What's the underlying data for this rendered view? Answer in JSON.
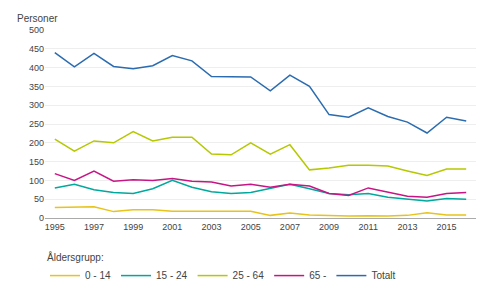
{
  "chart_data": {
    "type": "line",
    "y_label": "Personer",
    "legend_title": "Åldersgrupp:",
    "x": [
      1995,
      1996,
      1997,
      1998,
      1999,
      2000,
      2001,
      2002,
      2003,
      2004,
      2005,
      2006,
      2007,
      2008,
      2009,
      2010,
      2011,
      2012,
      2013,
      2014,
      2015,
      2016
    ],
    "series": [
      {
        "name": "0 - 14",
        "color": "#e8c319",
        "values": [
          28,
          30,
          30,
          17,
          22,
          22,
          18,
          18,
          18,
          20,
          18,
          7,
          13,
          8,
          6,
          5,
          6,
          5,
          7,
          14,
          8,
          8
        ]
      },
      {
        "name": "15 - 24",
        "color": "#00a89d",
        "values": [
          80,
          90,
          75,
          68,
          65,
          78,
          100,
          82,
          70,
          65,
          68,
          80,
          90,
          78,
          65,
          62,
          65,
          55,
          50,
          45,
          52,
          50
        ]
      },
      {
        "name": "25 - 64",
        "color": "#b5c800",
        "values": [
          210,
          178,
          205,
          200,
          230,
          205,
          215,
          215,
          170,
          168,
          200,
          170,
          195,
          128,
          133,
          140,
          140,
          138,
          125,
          113,
          130,
          130
        ]
      },
      {
        "name": "65 -",
        "color": "#c71585",
        "values": [
          118,
          100,
          125,
          98,
          102,
          100,
          105,
          98,
          96,
          85,
          90,
          82,
          90,
          85,
          65,
          60,
          80,
          70,
          58,
          55,
          65,
          68
        ]
      },
      {
        "name": "Totalt",
        "color": "#2b6cb0",
        "values": [
          440,
          402,
          438,
          403,
          397,
          405,
          432,
          418,
          376,
          375,
          375,
          338,
          380,
          350,
          275,
          268,
          293,
          270,
          255,
          226,
          268,
          258
        ]
      }
    ],
    "xlim": [
      1994.5,
      2016.5
    ],
    "xticks": [
      1995,
      1997,
      1999,
      2001,
      2003,
      2005,
      2007,
      2009,
      2011,
      2013,
      2015
    ],
    "ylim": [
      0,
      500
    ],
    "yticks": [
      0,
      50,
      100,
      150,
      200,
      250,
      300,
      350,
      400,
      450,
      500
    ],
    "grid": "y",
    "legend": "bottom"
  }
}
